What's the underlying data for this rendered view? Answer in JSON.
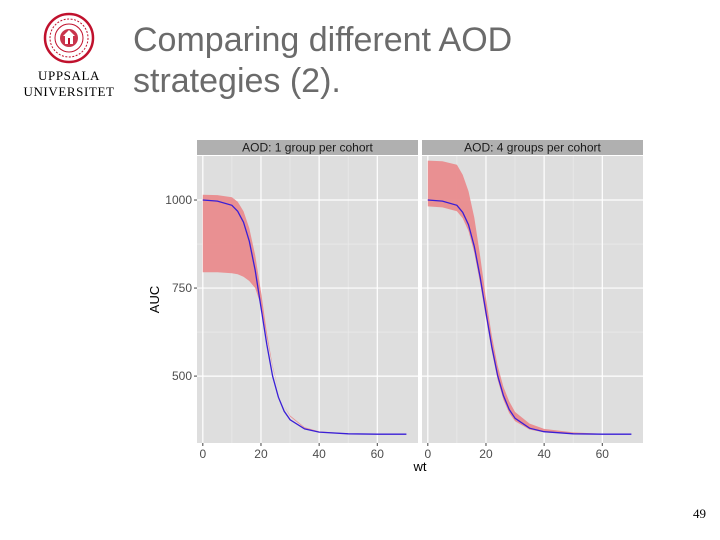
{
  "logo": {
    "lines": [
      "UPPSALA",
      "UNIVERSITET"
    ],
    "color": "#c0112d"
  },
  "slide": {
    "title_lines": [
      "Comparing different AOD",
      "strategies (2)."
    ],
    "page_number": "49"
  },
  "chart_data": {
    "type": "area",
    "xlabel": "wt",
    "ylabel": "AUC",
    "xlim": [
      -2,
      74
    ],
    "ylim": [
      310,
      1125
    ],
    "xticks": [
      0,
      20,
      40,
      60
    ],
    "yticks": [
      500,
      750,
      1000
    ],
    "grid": true,
    "colors": {
      "ribbon": "#e9898b",
      "line": "#3a1fd6",
      "panel_bg": "#dedede",
      "strip_bg": "#b0b0b0",
      "grid": "#ffffff"
    },
    "panels": [
      {
        "strip": "AOD: 1 group per cohort",
        "x": [
          0,
          5,
          10,
          12,
          14,
          16,
          18,
          20,
          22,
          24,
          26,
          28,
          30,
          35,
          40,
          50,
          60,
          70
        ],
        "line": [
          1000,
          997,
          985,
          968,
          937,
          883,
          800,
          695,
          590,
          500,
          440,
          400,
          376,
          350,
          341,
          336,
          335,
          335
        ],
        "lower": [
          795,
          795,
          792,
          789,
          782,
          770,
          750,
          700,
          610,
          525,
          462,
          415,
          385,
          352,
          342,
          336,
          335,
          335
        ],
        "upper": [
          1015,
          1014,
          1008,
          995,
          968,
          920,
          843,
          740,
          625,
          530,
          462,
          415,
          388,
          355,
          343,
          337,
          336,
          335
        ]
      },
      {
        "strip": "AOD: 4 groups per cohort",
        "x": [
          0,
          5,
          10,
          12,
          14,
          16,
          18,
          20,
          22,
          24,
          26,
          28,
          30,
          35,
          40,
          50,
          60,
          70
        ],
        "line": [
          1000,
          997,
          985,
          965,
          930,
          868,
          780,
          680,
          583,
          502,
          445,
          405,
          380,
          352,
          342,
          336,
          335,
          335
        ],
        "lower": [
          982,
          979,
          968,
          948,
          912,
          850,
          762,
          665,
          570,
          490,
          433,
          395,
          372,
          348,
          340,
          336,
          335,
          335
        ],
        "upper": [
          1112,
          1110,
          1100,
          1072,
          1025,
          950,
          840,
          720,
          615,
          530,
          470,
          428,
          398,
          365,
          350,
          340,
          336,
          335
        ]
      }
    ]
  }
}
